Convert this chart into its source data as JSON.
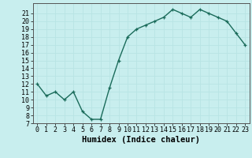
{
  "x": [
    0,
    1,
    2,
    3,
    4,
    5,
    6,
    7,
    8,
    9,
    10,
    11,
    12,
    13,
    14,
    15,
    16,
    17,
    18,
    19,
    20,
    21,
    22,
    23
  ],
  "y": [
    12,
    10.5,
    11,
    10,
    11,
    8.5,
    7.5,
    7.5,
    11.5,
    15,
    18,
    19,
    19.5,
    20,
    20.5,
    21.5,
    21,
    20.5,
    21.5,
    21,
    20.5,
    20,
    18.5,
    17
  ],
  "title": "",
  "xlabel": "Humidex (Indice chaleur)",
  "ylabel": "",
  "line_color": "#1a6b5a",
  "bg_color": "#c8eeee",
  "grid_color": "#aadddd",
  "ylim": [
    7,
    22
  ],
  "yticks": [
    7,
    8,
    9,
    10,
    11,
    12,
    13,
    14,
    15,
    16,
    17,
    18,
    19,
    20,
    21
  ],
  "xticks": [
    0,
    1,
    2,
    3,
    4,
    5,
    6,
    7,
    8,
    9,
    10,
    11,
    12,
    13,
    14,
    15,
    16,
    17,
    18,
    19,
    20,
    21,
    22,
    23
  ],
  "marker": "+",
  "marker_size": 3.5,
  "line_width": 1.0,
  "xlabel_fontsize": 7.5,
  "tick_fontsize": 6.0
}
